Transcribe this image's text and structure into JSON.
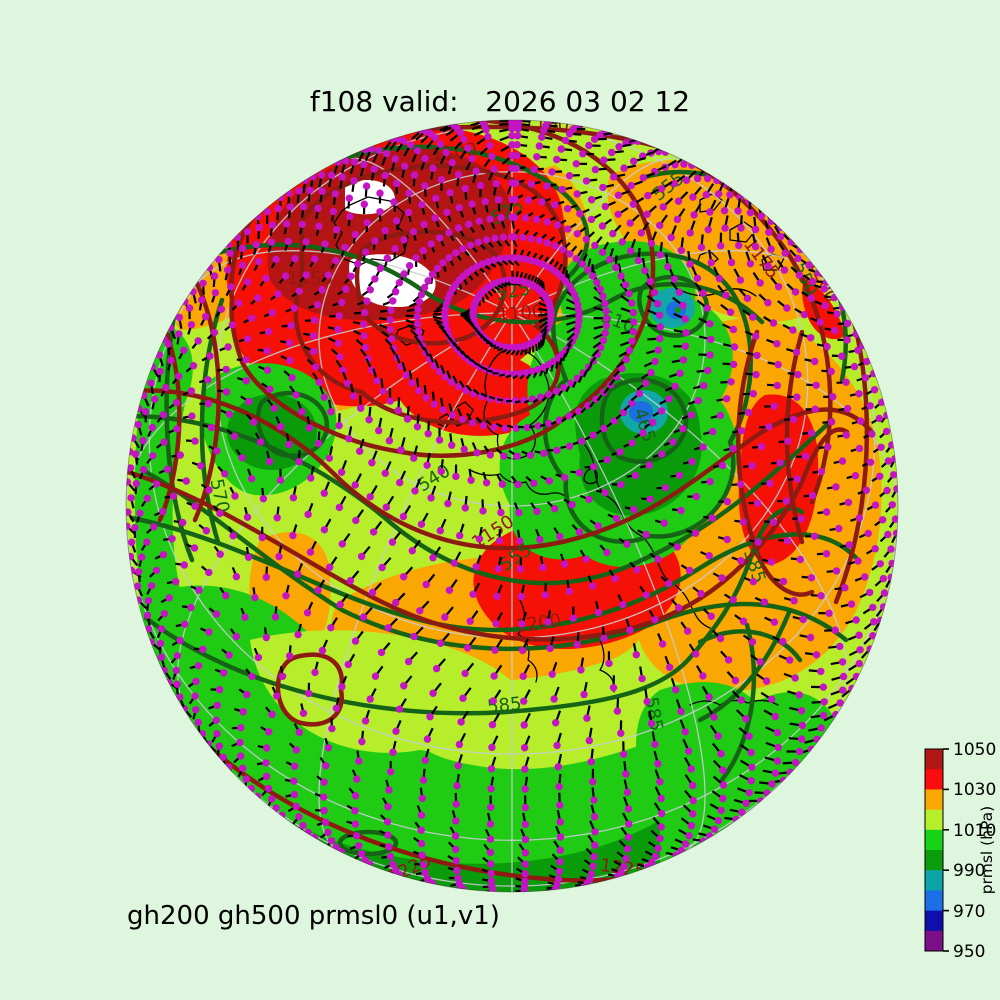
{
  "title": "f108 valid:   2026 03 02 12",
  "subtitle": "gh200 gh500 prmsl0 (u1,v1)",
  "colorbar": {
    "label": "prmsl (hPa)",
    "ticks": [
      "1050",
      "1030",
      "1010",
      "990",
      "970",
      "950"
    ],
    "min": 950,
    "max": 1050,
    "colors_top_to_bottom": [
      "#b11717",
      "#fb0d0d",
      "#fba702",
      "#b6ee2c",
      "#16d316",
      "#0a9c0a",
      "#0ba5a5",
      "#1d6fe8",
      "#0f10ab",
      "#7c0e88"
    ]
  },
  "globe": {
    "background": "#ddf6dd",
    "base_fill": "#b6ee2c",
    "fill_orange": "#fba703",
    "fill_red": "#f51106",
    "fill_darkred": "#b51414",
    "fill_green": "#1fcb13",
    "fill_darkgreen": "#0a9b0a",
    "fill_teal": "#11a7a7",
    "fill_blue": "#1b6fe0",
    "fill_over_range": "#ffffff",
    "gh200_color": "#8e1b12",
    "gh500_color": "#156415",
    "dot_color": "#c414c4",
    "graticule_color": "#c8cdd2",
    "gh200_labels": [
      "1100",
      "1100",
      "1100",
      "1150",
      "1150",
      "1175",
      "1200",
      "1200",
      "1225",
      "1225",
      "1225"
    ],
    "gh500_labels": [
      "525",
      "525",
      "510",
      "540",
      "550",
      "555",
      "555",
      "570",
      "585",
      "585",
      "585",
      "465"
    ]
  }
}
